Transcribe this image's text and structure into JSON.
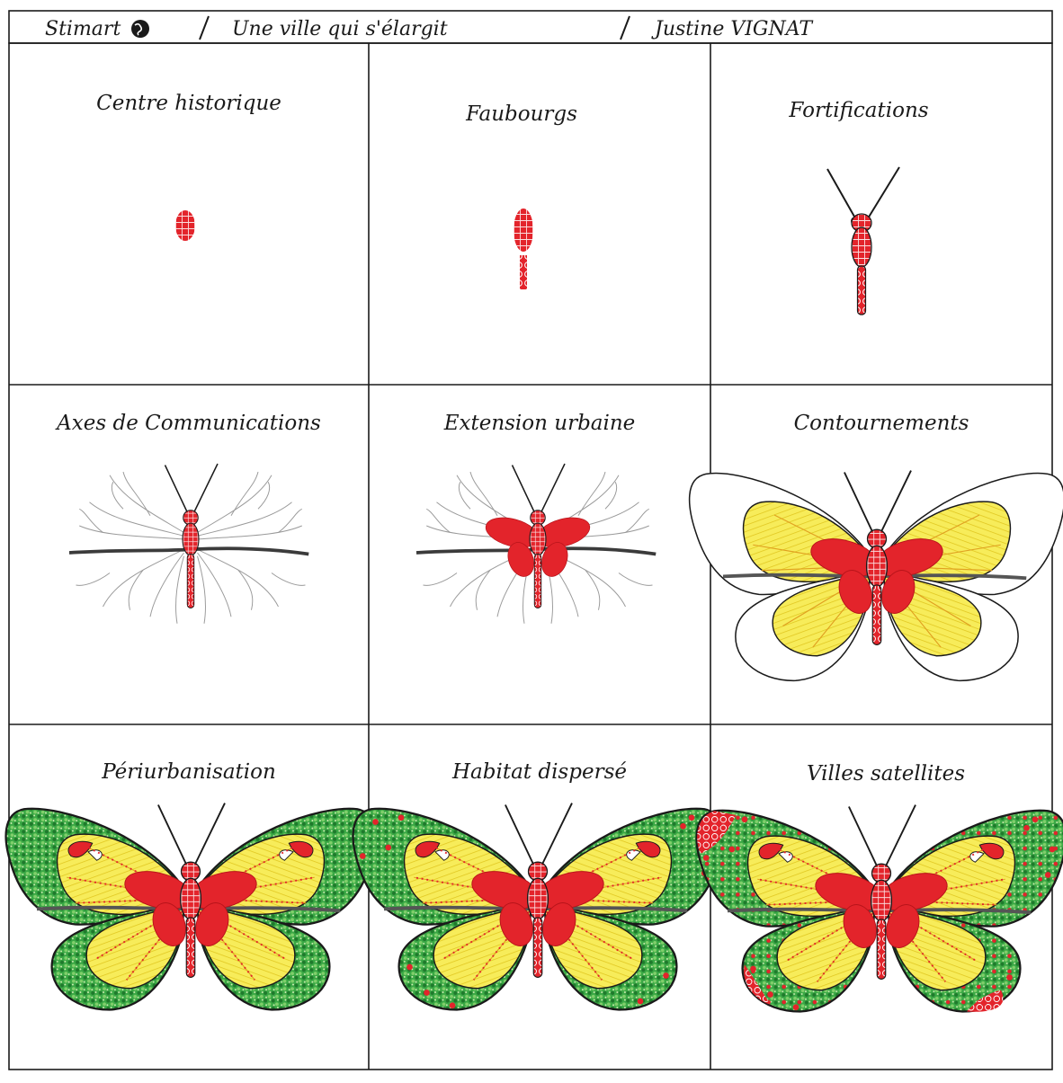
{
  "header": {
    "brand": "Stimart",
    "title": "Une ville qui s'élargit",
    "author": "Justine VIGNAT"
  },
  "panels": [
    {
      "caption": "Centre historique",
      "stage": "center"
    },
    {
      "caption": "Faubourgs",
      "stage": "faubourgs"
    },
    {
      "caption": "Fortifications",
      "stage": "fortifications"
    },
    {
      "caption": "Axes de Communications",
      "stage": "axes"
    },
    {
      "caption": "Extension urbaine",
      "stage": "extension"
    },
    {
      "caption": "Contournements",
      "stage": "contournements"
    },
    {
      "caption": "Périurbanisation",
      "stage": "periurbanisation"
    },
    {
      "caption": "Habitat dispersé",
      "stage": "habitat"
    },
    {
      "caption": "Villes satellites",
      "stage": "satellites"
    }
  ],
  "colors": {
    "red": "#e3242b",
    "yellow": "#f5e642",
    "green": "#2e9e3a",
    "gray": "#9a9a9a",
    "ink": "#1a1a1a"
  },
  "icons": {
    "brand": "globe-icon"
  }
}
